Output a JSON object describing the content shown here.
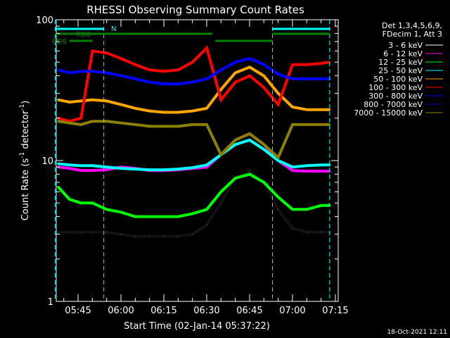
{
  "chart_data": {
    "type": "line",
    "title": "RHESSI Observing Summary Count Rates",
    "xlabel": "Start Time (02-Jan-14 05:37:22)",
    "ylabel": "Count Rate (s⁻¹ detector⁻¹)",
    "ylabel_parts": [
      "Count Rate (s",
      "-1",
      " detector",
      "-1",
      ")"
    ],
    "y_scale": "log",
    "ylim": [
      1,
      100
    ],
    "xlim": [
      "05:37:22",
      "07:16:00"
    ],
    "y_tick_labels": [
      "1",
      "10",
      "100"
    ],
    "x_tick_labels": [
      "05:45",
      "06:00",
      "06:15",
      "06:30",
      "06:45",
      "07:00",
      "07:15"
    ],
    "legend_header": [
      "Det 1,3,4,5,6,9,",
      "FDecim 1, Att 3"
    ],
    "legend_position": "right",
    "timestamp": "18-Oct-2021 12:11",
    "series": [
      {
        "name": "3 - 6 keV",
        "color": "#000000",
        "x": [
          "05:38",
          "05:42",
          "05:46",
          "05:50",
          "05:55",
          "06:00",
          "06:05",
          "06:10",
          "06:15",
          "06:20",
          "06:25",
          "06:30",
          "06:35",
          "06:40",
          "06:45",
          "06:50",
          "06:55",
          "07:00",
          "07:05",
          "07:10",
          "07:13"
        ],
        "values": [
          3.1,
          3.1,
          3.1,
          3.1,
          3.1,
          3.0,
          2.9,
          2.9,
          2.9,
          2.9,
          3.0,
          3.5,
          5.0,
          7.5,
          8.5,
          7.0,
          4.5,
          3.3,
          3.1,
          3.1,
          3.1
        ]
      },
      {
        "name": "6 - 12 keV",
        "color": "#ff00ff",
        "x": [
          "05:38",
          "05:42",
          "05:46",
          "05:50",
          "05:55",
          "06:00",
          "06:05",
          "06:10",
          "06:15",
          "06:20",
          "06:25",
          "06:30",
          "06:35",
          "06:40",
          "06:45",
          "06:50",
          "06:55",
          "07:00",
          "07:05",
          "07:10",
          "07:13"
        ],
        "values": [
          9.0,
          8.8,
          8.5,
          8.5,
          8.6,
          9.0,
          8.8,
          8.5,
          8.5,
          8.6,
          8.8,
          9.0,
          11.0,
          14.0,
          15.5,
          13.0,
          10.0,
          8.5,
          8.4,
          8.4,
          8.4
        ]
      },
      {
        "name": "12 - 25 keV",
        "color": "#00ff00",
        "x": [
          "05:38",
          "05:42",
          "05:46",
          "05:50",
          "05:55",
          "06:00",
          "06:05",
          "06:10",
          "06:15",
          "06:20",
          "06:25",
          "06:30",
          "06:35",
          "06:40",
          "06:45",
          "06:50",
          "06:55",
          "07:00",
          "07:05",
          "07:10",
          "07:13"
        ],
        "values": [
          6.5,
          5.3,
          5.0,
          5.0,
          4.5,
          4.3,
          4.0,
          4.0,
          4.0,
          4.0,
          4.2,
          4.5,
          6.0,
          7.5,
          8.0,
          7.0,
          5.5,
          4.5,
          4.5,
          4.8,
          4.8
        ]
      },
      {
        "name": "25 - 50 keV",
        "color": "#00ffff",
        "x": [
          "05:38",
          "05:42",
          "05:46",
          "05:50",
          "05:55",
          "06:00",
          "06:05",
          "06:10",
          "06:15",
          "06:20",
          "06:25",
          "06:30",
          "06:35",
          "06:40",
          "06:45",
          "06:50",
          "06:55",
          "07:00",
          "07:05",
          "07:10",
          "07:13"
        ],
        "values": [
          9.5,
          9.3,
          9.2,
          9.2,
          9.0,
          8.8,
          8.7,
          8.6,
          8.6,
          8.7,
          8.9,
          9.3,
          11.0,
          13.0,
          14.0,
          12.0,
          10.0,
          9.0,
          9.2,
          9.3,
          9.3
        ]
      },
      {
        "name": "50 - 100 keV",
        "color": "#ffa500",
        "x": [
          "05:38",
          "05:42",
          "05:46",
          "05:50",
          "05:55",
          "06:00",
          "06:05",
          "06:10",
          "06:15",
          "06:20",
          "06:25",
          "06:30",
          "06:35",
          "06:40",
          "06:45",
          "06:50",
          "06:55",
          "07:00",
          "07:05",
          "07:10",
          "07:13"
        ],
        "values": [
          27,
          26,
          26.5,
          27,
          26.5,
          25,
          23.5,
          22.5,
          22,
          22,
          22.5,
          23.5,
          32,
          42,
          46,
          40,
          30,
          24,
          23,
          23,
          23
        ]
      },
      {
        "name": "100 - 300 keV",
        "color": "#ff0000",
        "x": [
          "05:38",
          "05:42",
          "05:46",
          "05:50",
          "05:55",
          "06:00",
          "06:05",
          "06:10",
          "06:15",
          "06:20",
          "06:25",
          "06:30",
          "06:35",
          "06:40",
          "06:45",
          "06:50",
          "06:55",
          "07:00",
          "07:05",
          "07:10",
          "07:13"
        ],
        "values": [
          20,
          19,
          20,
          60,
          58,
          53,
          48,
          44,
          43,
          44,
          50,
          63,
          27,
          36,
          40,
          33,
          25,
          48,
          48,
          49,
          50
        ]
      },
      {
        "name": "300 - 800 keV",
        "color": "#0000ff",
        "x": [
          "05:38",
          "05:42",
          "05:46",
          "05:50",
          "05:55",
          "06:00",
          "06:05",
          "06:10",
          "06:15",
          "06:20",
          "06:25",
          "06:30",
          "06:35",
          "06:40",
          "06:45",
          "06:50",
          "06:55",
          "07:00",
          "07:05",
          "07:10",
          "07:13"
        ],
        "values": [
          44,
          42,
          43,
          43,
          42,
          40,
          38,
          36,
          35,
          35,
          36,
          38,
          44,
          50,
          53,
          48,
          41,
          38,
          38,
          38,
          38
        ]
      },
      {
        "name": "800 - 7000 keV",
        "color": "#0000aa",
        "x": [],
        "values": []
      },
      {
        "name": "7000 - 15000 keV",
        "color": "#8b8000",
        "x": [
          "05:38",
          "05:42",
          "05:46",
          "05:50",
          "05:55",
          "06:00",
          "06:05",
          "06:10",
          "06:15",
          "06:20",
          "06:25",
          "06:30",
          "06:35",
          "06:40",
          "06:45",
          "06:50",
          "06:55",
          "07:00",
          "07:05",
          "07:10",
          "07:13"
        ],
        "values": [
          19,
          18.5,
          18,
          19,
          19,
          18.5,
          18,
          17.5,
          17.5,
          17.5,
          18,
          18,
          11,
          14,
          15.5,
          13,
          10.5,
          18,
          18,
          18,
          18
        ]
      }
    ],
    "state_bars": [
      {
        "label": "N",
        "color": "#00ffff",
        "row": 1,
        "segments": [
          [
            "05:37",
            "05:54"
          ],
          [
            "06:53",
            "07:13"
          ]
        ]
      },
      {
        "label": "RD0",
        "color": "#008000",
        "row": 2,
        "segments": [
          [
            "05:37",
            "06:32"
          ],
          [
            "06:53",
            "07:13"
          ]
        ]
      },
      {
        "label": "RD6",
        "color": "#008000",
        "row": 3,
        "segments": [
          [
            "05:42",
            "05:50"
          ],
          [
            "06:33",
            "06:53"
          ]
        ]
      }
    ],
    "grid": false
  }
}
